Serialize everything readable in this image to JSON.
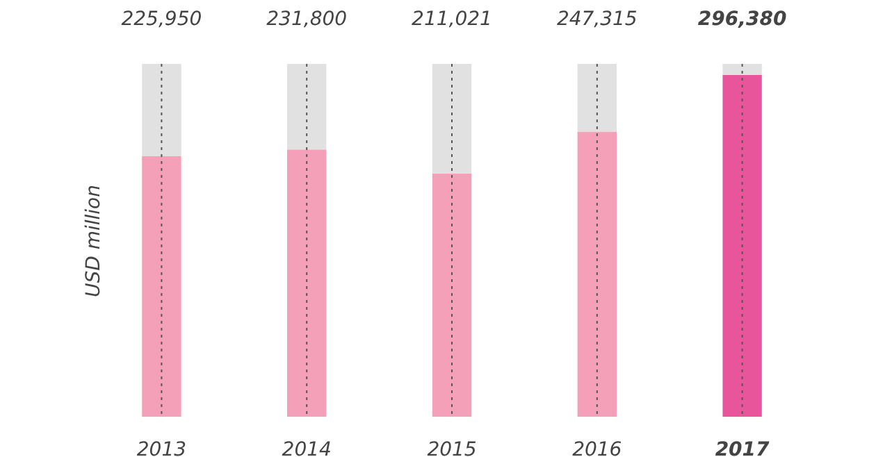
{
  "chart_data": {
    "type": "bar",
    "ylabel": "USD million",
    "categories": [
      "2013",
      "2014",
      "2015",
      "2016",
      "2017"
    ],
    "stacked": true,
    "grid": "x",
    "ylim": [
      0,
      306000
    ],
    "tick_labels": "x",
    "series": [
      {
        "colors": [
          "#f4a0b8",
          "#f4a0b8",
          "#f4a0b8",
          "#f4a0b8",
          "#e8559a"
        ],
        "values": [
          225950,
          231800,
          211021,
          247315,
          296380
        ],
        "value_labels": [
          "225,950",
          "231,800",
          "211,021",
          "247,315",
          "296,380"
        ]
      },
      {
        "color": "#e1e1e1",
        "values": [
          80050,
          74200,
          94979,
          58685,
          9620
        ]
      }
    ]
  }
}
